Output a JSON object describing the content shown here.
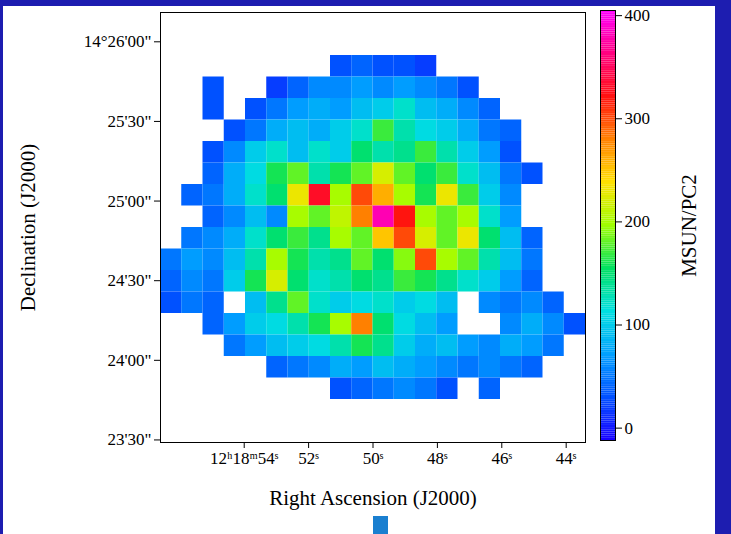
{
  "chart_data": {
    "type": "heatmap",
    "x_label": "Right Ascension (J2000)",
    "y_label": "Declination (J2000)",
    "xlim": [
      56.6,
      43.4
    ],
    "xticks": [
      {
        "value": 54,
        "label": "12ʰ18ᵐ54ˢ"
      },
      {
        "value": 52,
        "label": "52ˢ"
      },
      {
        "value": 50,
        "label": "50ˢ"
      },
      {
        "value": 48,
        "label": "48ˢ"
      },
      {
        "value": 46,
        "label": "46ˢ"
      },
      {
        "value": 44,
        "label": "44ˢ"
      }
    ],
    "ylim": [
      14.3914,
      14.4364
    ],
    "yticks": [
      {
        "value": 14.433333,
        "label": "14°26'00\""
      },
      {
        "value": 14.425,
        "label": "25'30\""
      },
      {
        "value": 14.416667,
        "label": "25'00\""
      },
      {
        "value": 14.408333,
        "label": "24'30\""
      },
      {
        "value": 14.4,
        "label": "24'00\""
      },
      {
        "value": 14.391667,
        "label": "23'30\""
      }
    ],
    "cells": {
      "x": [
        56.27,
        55.61,
        54.95,
        54.29,
        53.63,
        52.97,
        52.31,
        51.65,
        50.99,
        50.33,
        49.67,
        49.01,
        48.35,
        47.69,
        47.03,
        46.37,
        45.71,
        45.05,
        44.39,
        43.73
      ],
      "y": [
        14.435275,
        14.433025,
        14.430775,
        14.428525,
        14.426275,
        14.424025,
        14.421775,
        14.419525,
        14.417275,
        14.415025,
        14.412775,
        14.410525,
        14.408275,
        14.406025,
        14.403775,
        14.401525,
        14.399275,
        14.397025,
        14.394775,
        14.392525
      ],
      "values": [
        [
          null,
          null,
          null,
          null,
          null,
          null,
          null,
          null,
          null,
          null,
          null,
          null,
          null,
          null,
          null,
          null,
          null,
          null,
          null,
          null
        ],
        [
          null,
          null,
          null,
          null,
          null,
          null,
          null,
          null,
          null,
          null,
          null,
          null,
          null,
          null,
          null,
          null,
          null,
          null,
          null,
          null
        ],
        [
          null,
          null,
          null,
          null,
          null,
          null,
          null,
          null,
          30,
          40,
          30,
          30,
          20,
          null,
          null,
          null,
          null,
          null,
          null,
          null
        ],
        [
          null,
          null,
          30,
          null,
          null,
          20,
          40,
          60,
          60,
          70,
          60,
          70,
          60,
          50,
          30,
          null,
          null,
          null,
          null,
          null
        ],
        [
          null,
          null,
          30,
          null,
          30,
          50,
          70,
          80,
          70,
          90,
          100,
          120,
          90,
          80,
          60,
          40,
          null,
          null,
          null,
          null
        ],
        [
          null,
          null,
          null,
          30,
          50,
          80,
          90,
          80,
          100,
          120,
          170,
          130,
          110,
          100,
          80,
          50,
          40,
          null,
          null,
          null
        ],
        [
          null,
          null,
          30,
          60,
          100,
          120,
          90,
          120,
          100,
          150,
          130,
          140,
          170,
          130,
          100,
          70,
          30,
          null,
          null,
          null
        ],
        [
          null,
          null,
          40,
          80,
          110,
          160,
          180,
          130,
          160,
          180,
          220,
          180,
          150,
          170,
          120,
          90,
          50,
          30,
          null,
          null
        ],
        [
          null,
          40,
          50,
          80,
          120,
          150,
          230,
          330,
          200,
          300,
          260,
          200,
          160,
          230,
          170,
          100,
          60,
          null,
          null,
          null
        ],
        [
          null,
          null,
          40,
          60,
          90,
          60,
          200,
          180,
          210,
          280,
          380,
          320,
          200,
          180,
          200,
          120,
          70,
          null,
          null,
          null
        ],
        [
          null,
          50,
          60,
          80,
          120,
          150,
          170,
          140,
          200,
          180,
          250,
          300,
          220,
          180,
          230,
          150,
          90,
          40,
          null,
          null
        ],
        [
          50,
          70,
          60,
          90,
          130,
          200,
          160,
          130,
          140,
          180,
          150,
          190,
          300,
          200,
          180,
          130,
          90,
          50,
          null,
          null
        ],
        [
          40,
          60,
          50,
          100,
          160,
          220,
          150,
          120,
          130,
          150,
          140,
          170,
          160,
          140,
          120,
          100,
          70,
          40,
          null,
          null
        ],
        [
          30,
          50,
          40,
          null,
          90,
          140,
          180,
          120,
          100,
          110,
          120,
          100,
          110,
          90,
          null,
          60,
          50,
          60,
          40,
          null
        ],
        [
          null,
          null,
          40,
          70,
          100,
          110,
          130,
          160,
          200,
          280,
          150,
          110,
          90,
          70,
          null,
          null,
          60,
          80,
          60,
          30
        ],
        [
          null,
          null,
          null,
          50,
          70,
          90,
          100,
          110,
          130,
          160,
          140,
          100,
          80,
          90,
          70,
          60,
          80,
          70,
          50,
          null
        ],
        [
          null,
          null,
          null,
          null,
          null,
          40,
          50,
          60,
          80,
          70,
          90,
          80,
          70,
          60,
          50,
          60,
          50,
          40,
          null,
          null
        ],
        [
          null,
          null,
          null,
          null,
          null,
          null,
          null,
          null,
          30,
          40,
          50,
          60,
          50,
          30,
          null,
          40,
          null,
          null,
          null,
          null
        ],
        [
          null,
          null,
          null,
          null,
          null,
          null,
          null,
          null,
          null,
          null,
          null,
          null,
          null,
          null,
          null,
          null,
          null,
          null,
          null,
          null
        ],
        [
          null,
          null,
          null,
          null,
          null,
          null,
          null,
          null,
          null,
          null,
          null,
          null,
          null,
          null,
          null,
          null,
          null,
          null,
          null,
          null
        ]
      ]
    },
    "colorbar": {
      "label": "MSUN/PC2",
      "range": [
        -12,
        405
      ],
      "ticks": [
        0,
        100,
        200,
        300,
        400
      ]
    }
  }
}
